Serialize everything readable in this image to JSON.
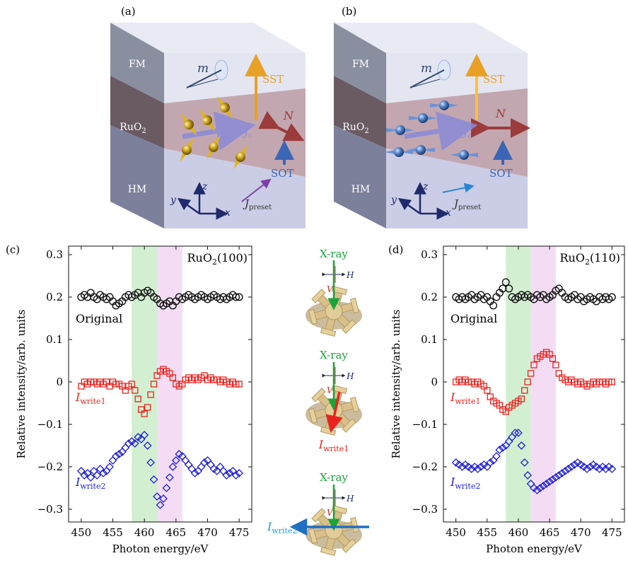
{
  "panels": {
    "a": "(a)",
    "b": "(b)",
    "c": "(c)",
    "d": "(d)"
  },
  "block_labels": {
    "fm": "FM",
    "ruo2": "RuO",
    "ruo2_sub": "2",
    "hm": "HM",
    "m": "m",
    "sst": "SST",
    "n": "N",
    "jc": "J",
    "jc_sub": "c",
    "sot": "SOT",
    "jpreset": "J",
    "jpreset_sub": "preset",
    "x": "x",
    "y": "y",
    "z": "z"
  },
  "middle": {
    "xray": "X-ray",
    "h": "H",
    "v": "V",
    "iwrite1": "I",
    "iwrite1_sub": "write1",
    "iwrite2": "I",
    "iwrite2_sub": "write2"
  },
  "colors": {
    "original": "#111111",
    "write1": "#e8231f",
    "write2": "#1f1fd6",
    "green_band": "#cdeecc",
    "pink_band": "#f3d9f3",
    "sst": "#e8a126",
    "n": "#9b3b3b",
    "sot": "#3b66b5"
  },
  "chart_data": [
    {
      "type": "scatter",
      "title": "RuO2(100)",
      "xlabel": "Photon energy/eV",
      "ylabel": "Relative intensity/arb. units",
      "xlim": [
        448,
        477
      ],
      "ylim": [
        -0.33,
        0.32
      ],
      "xticks": [
        "450",
        "455",
        "460",
        "465",
        "470",
        "475"
      ],
      "yticks": [
        "0.3",
        "0.2",
        "0.1",
        "0",
        "−0.1",
        "−0.2",
        "−0.3"
      ],
      "bands": [
        [
          458,
          462
        ],
        [
          462,
          466
        ]
      ],
      "series": [
        {
          "name": "Original",
          "marker": "circle",
          "x": [
            450,
            450.5,
            451,
            451.5,
            452,
            452.5,
            453,
            453.5,
            454,
            454.5,
            455,
            455.5,
            456,
            456.5,
            457,
            457.5,
            458,
            458.5,
            459,
            459.5,
            460,
            460.5,
            461,
            461.5,
            462,
            462.5,
            463,
            463.5,
            464,
            464.5,
            465,
            465.5,
            466,
            466.5,
            467,
            467.5,
            468,
            468.5,
            469,
            469.5,
            470,
            470.5,
            471,
            471.5,
            472,
            472.5,
            473,
            473.5,
            474,
            474.5,
            475
          ],
          "y": [
            0.2,
            0.205,
            0.2,
            0.21,
            0.2,
            0.195,
            0.205,
            0.2,
            0.195,
            0.2,
            0.19,
            0.18,
            0.185,
            0.19,
            0.2,
            0.205,
            0.2,
            0.205,
            0.21,
            0.2,
            0.21,
            0.215,
            0.21,
            0.2,
            0.195,
            0.185,
            0.18,
            0.185,
            0.19,
            0.18,
            0.19,
            0.2,
            0.195,
            0.2,
            0.205,
            0.2,
            0.195,
            0.2,
            0.205,
            0.2,
            0.195,
            0.2,
            0.205,
            0.2,
            0.195,
            0.2,
            0.195,
            0.2,
            0.205,
            0.2,
            0.2
          ]
        },
        {
          "name": "Iwrite1",
          "marker": "square",
          "x": [
            450,
            450.5,
            451,
            451.5,
            452,
            452.5,
            453,
            453.5,
            454,
            454.5,
            455,
            455.5,
            456,
            456.5,
            457,
            457.5,
            458,
            458.5,
            459,
            459.5,
            460,
            460.5,
            461,
            461.5,
            462,
            462.5,
            463,
            463.5,
            464,
            464.5,
            465,
            465.5,
            466,
            466.5,
            467,
            467.5,
            468,
            468.5,
            469,
            469.5,
            470,
            470.5,
            471,
            471.5,
            472,
            472.5,
            473,
            473.5,
            474,
            474.5,
            475
          ],
          "y": [
            -0.01,
            0,
            -0.005,
            0,
            0,
            -0.005,
            0,
            -0.005,
            0,
            -0.01,
            0,
            -0.005,
            -0.005,
            -0.01,
            -0.02,
            -0.01,
            -0.005,
            -0.02,
            -0.04,
            -0.065,
            -0.075,
            -0.06,
            -0.03,
            -0.005,
            0.015,
            0.025,
            0.03,
            0.025,
            0.02,
            0.01,
            -0.005,
            -0.01,
            -0.005,
            0.005,
            0.01,
            0.005,
            0.01,
            0.005,
            0.01,
            0.015,
            0.005,
            0.01,
            0.005,
            0.005,
            0,
            0.005,
            0,
            -0.005,
            0,
            -0.005,
            -0.005
          ]
        },
        {
          "name": "Iwrite2",
          "marker": "diamond",
          "x": [
            450,
            450.5,
            451,
            451.5,
            452,
            452.5,
            453,
            453.5,
            454,
            454.5,
            455,
            455.5,
            456,
            456.5,
            457,
            457.5,
            458,
            458.5,
            459,
            459.5,
            460,
            460.5,
            461,
            461.5,
            462,
            462.5,
            463,
            463.5,
            464,
            464.5,
            465,
            465.5,
            466,
            466.5,
            467,
            467.5,
            468,
            468.5,
            469,
            469.5,
            470,
            470.5,
            471,
            471.5,
            472,
            472.5,
            473,
            473.5,
            474,
            474.5,
            475
          ],
          "y": [
            -0.21,
            -0.22,
            -0.215,
            -0.225,
            -0.21,
            -0.22,
            -0.205,
            -0.215,
            -0.21,
            -0.2,
            -0.185,
            -0.175,
            -0.17,
            -0.165,
            -0.155,
            -0.145,
            -0.14,
            -0.145,
            -0.13,
            -0.135,
            -0.125,
            -0.15,
            -0.19,
            -0.23,
            -0.27,
            -0.29,
            -0.275,
            -0.25,
            -0.225,
            -0.2,
            -0.185,
            -0.17,
            -0.175,
            -0.185,
            -0.195,
            -0.205,
            -0.215,
            -0.21,
            -0.2,
            -0.19,
            -0.185,
            -0.195,
            -0.205,
            -0.21,
            -0.2,
            -0.21,
            -0.22,
            -0.215,
            -0.21,
            -0.22,
            -0.215
          ]
        }
      ]
    },
    {
      "type": "scatter",
      "title": "RuO2(110)",
      "xlabel": "Photon energy/eV",
      "ylabel": "Relative intensity/arb. units",
      "xlim": [
        448,
        477
      ],
      "ylim": [
        -0.33,
        0.32
      ],
      "xticks": [
        "450",
        "455",
        "460",
        "465",
        "470",
        "475"
      ],
      "yticks": [
        "0.3",
        "0.2",
        "0.1",
        "0",
        "−0.1",
        "−0.2",
        "−0.3"
      ],
      "bands": [
        [
          458,
          462
        ],
        [
          462,
          466
        ]
      ],
      "series": [
        {
          "name": "Original",
          "marker": "circle",
          "x": [
            450,
            450.5,
            451,
            451.5,
            452,
            452.5,
            453,
            453.5,
            454,
            454.5,
            455,
            455.5,
            456,
            456.5,
            457,
            457.5,
            458,
            458.5,
            459,
            459.5,
            460,
            460.5,
            461,
            461.5,
            462,
            462.5,
            463,
            463.5,
            464,
            464.5,
            465,
            465.5,
            466,
            466.5,
            467,
            467.5,
            468,
            468.5,
            469,
            469.5,
            470,
            470.5,
            471,
            471.5,
            472,
            472.5,
            473,
            473.5,
            474,
            474.5,
            475
          ],
          "y": [
            0.2,
            0.195,
            0.2,
            0.195,
            0.2,
            0.205,
            0.195,
            0.2,
            0.205,
            0.195,
            0.2,
            0.19,
            0.18,
            0.2,
            0.21,
            0.22,
            0.235,
            0.22,
            0.2,
            0.195,
            0.2,
            0.205,
            0.2,
            0.205,
            0.2,
            0.195,
            0.205,
            0.2,
            0.205,
            0.195,
            0.2,
            0.205,
            0.215,
            0.22,
            0.21,
            0.2,
            0.195,
            0.2,
            0.205,
            0.195,
            0.2,
            0.19,
            0.195,
            0.2,
            0.195,
            0.19,
            0.2,
            0.195,
            0.2,
            0.195,
            0.2
          ]
        },
        {
          "name": "Iwrite1",
          "marker": "square",
          "x": [
            450,
            450.5,
            451,
            451.5,
            452,
            452.5,
            453,
            453.5,
            454,
            454.5,
            455,
            455.5,
            456,
            456.5,
            457,
            457.5,
            458,
            458.5,
            459,
            459.5,
            460,
            460.5,
            461,
            461.5,
            462,
            462.5,
            463,
            463.5,
            464,
            464.5,
            465,
            465.5,
            466,
            466.5,
            467,
            467.5,
            468,
            468.5,
            469,
            469.5,
            470,
            470.5,
            471,
            471.5,
            472,
            472.5,
            473,
            473.5,
            474,
            474.5,
            475
          ],
          "y": [
            0,
            0.005,
            0,
            0.005,
            0,
            0,
            -0.005,
            0,
            -0.005,
            -0.01,
            -0.02,
            -0.035,
            -0.045,
            -0.05,
            -0.055,
            -0.065,
            -0.07,
            -0.06,
            -0.055,
            -0.05,
            -0.045,
            -0.04,
            -0.02,
            0,
            0.02,
            0.04,
            0.055,
            0.06,
            0.065,
            0.07,
            0.065,
            0.055,
            0.04,
            0.02,
            0.01,
            0.005,
            0,
            0.005,
            0,
            -0.005,
            0,
            -0.005,
            -0.01,
            -0.005,
            0,
            -0.005,
            0,
            0,
            -0.005,
            0,
            0
          ]
        },
        {
          "name": "Iwrite2",
          "marker": "diamond",
          "x": [
            450,
            450.5,
            451,
            451.5,
            452,
            452.5,
            453,
            453.5,
            454,
            454.5,
            455,
            455.5,
            456,
            456.5,
            457,
            457.5,
            458,
            458.5,
            459,
            459.5,
            460,
            460.5,
            461,
            461.5,
            462,
            462.5,
            463,
            463.5,
            464,
            464.5,
            465,
            465.5,
            466,
            466.5,
            467,
            467.5,
            468,
            468.5,
            469,
            469.5,
            470,
            470.5,
            471,
            471.5,
            472,
            472.5,
            473,
            473.5,
            474,
            474.5,
            475
          ],
          "y": [
            -0.19,
            -0.195,
            -0.2,
            -0.195,
            -0.2,
            -0.205,
            -0.2,
            -0.205,
            -0.2,
            -0.195,
            -0.2,
            -0.19,
            -0.185,
            -0.175,
            -0.16,
            -0.155,
            -0.15,
            -0.14,
            -0.13,
            -0.12,
            -0.12,
            -0.15,
            -0.19,
            -0.22,
            -0.24,
            -0.25,
            -0.255,
            -0.25,
            -0.245,
            -0.24,
            -0.235,
            -0.23,
            -0.225,
            -0.22,
            -0.215,
            -0.21,
            -0.205,
            -0.2,
            -0.195,
            -0.19,
            -0.195,
            -0.2,
            -0.205,
            -0.2,
            -0.195,
            -0.2,
            -0.205,
            -0.2,
            -0.205,
            -0.2,
            -0.205
          ]
        }
      ]
    }
  ]
}
